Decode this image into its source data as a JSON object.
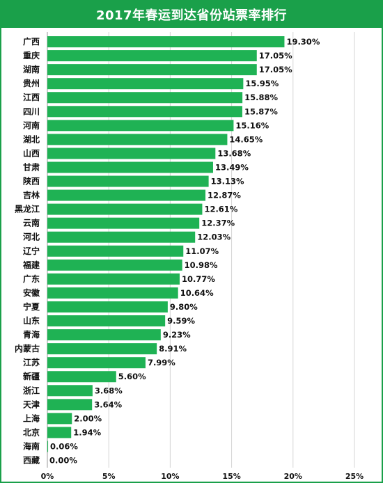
{
  "chart_data": {
    "type": "bar",
    "orientation": "horizontal",
    "title": "2017年春运到达省份站票率排行",
    "categories": [
      "广西",
      "重庆",
      "湖南",
      "贵州",
      "江西",
      "四川",
      "河南",
      "湖北",
      "山西",
      "甘肃",
      "陕西",
      "吉林",
      "黑龙江",
      "云南",
      "河北",
      "辽宁",
      "福建",
      "广东",
      "安徽",
      "宁夏",
      "山东",
      "青海",
      "内蒙古",
      "江苏",
      "新疆",
      "浙江",
      "天津",
      "上海",
      "北京",
      "海南",
      "西藏"
    ],
    "values": [
      19.3,
      17.05,
      17.05,
      15.95,
      15.88,
      15.87,
      15.16,
      14.65,
      13.68,
      13.49,
      13.13,
      12.87,
      12.61,
      12.37,
      12.03,
      11.07,
      10.98,
      10.77,
      10.64,
      9.8,
      9.59,
      9.23,
      8.91,
      7.99,
      5.6,
      3.68,
      3.64,
      2.0,
      1.94,
      0.06,
      0.0
    ],
    "value_labels": [
      "19.30%",
      "17.05%",
      "17.05%",
      "15.95%",
      "15.88%",
      "15.87%",
      "15.16%",
      "14.65%",
      "13.68%",
      "13.49%",
      "13.13%",
      "12.87%",
      "12.61%",
      "12.37%",
      "12.03%",
      "11.07%",
      "10.98%",
      "10.77%",
      "10.64%",
      "9.80%",
      "9.59%",
      "9.23%",
      "8.91%",
      "7.99%",
      "5.60%",
      "3.68%",
      "3.64%",
      "2.00%",
      "1.94%",
      "0.06%",
      "0.00%"
    ],
    "xlim": [
      0,
      25
    ],
    "x_ticks": [
      "0%",
      "5%",
      "10%",
      "15%",
      "20%",
      "25%"
    ],
    "grid": "vertical",
    "bar_color": "#1fb254",
    "title_bar_color": "#1aa04a"
  }
}
